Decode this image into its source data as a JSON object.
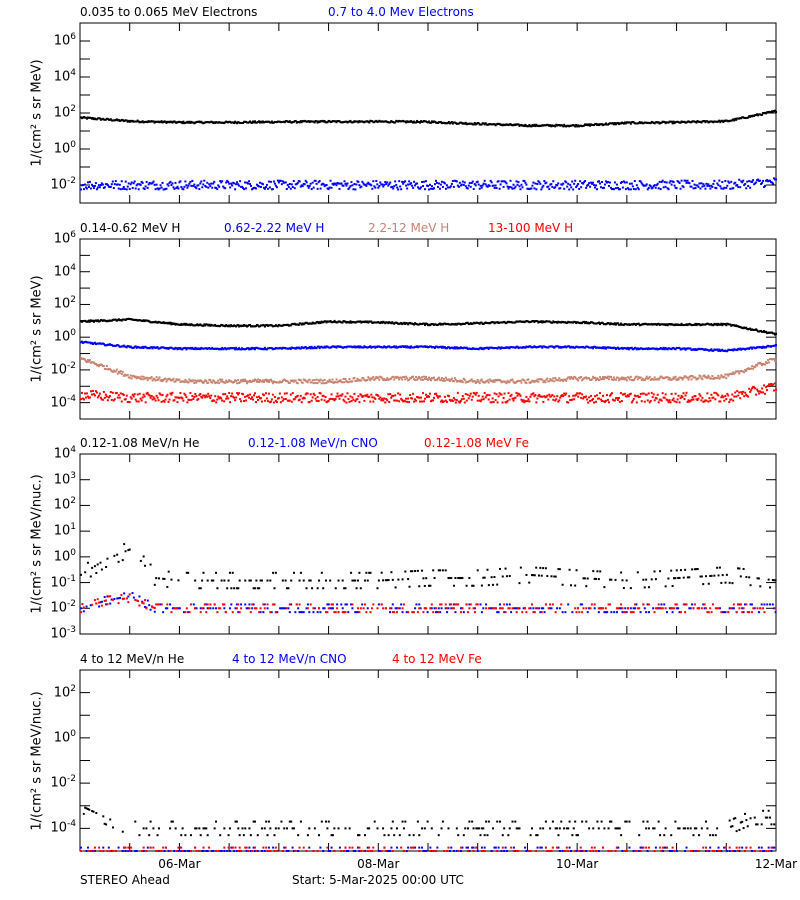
{
  "footer": {
    "spacecraft": "STEREO Ahead",
    "start": "Start:  5-Mar-2025 00:00 UTC"
  },
  "colors": {
    "black": "#000000",
    "blue": "#0000ff",
    "brown": "#c8826e",
    "red": "#ff0000"
  },
  "chart_data": [
    {
      "type": "scatter",
      "ylabel": "1/(cm² s sr MeV)",
      "ylog": true,
      "ylim": [
        0.001,
        10000000
      ],
      "ytick_exponents": [
        -2,
        0,
        2,
        4,
        6
      ],
      "x_times_days": [
        0,
        0.5,
        1,
        1.5,
        2,
        2.5,
        3,
        3.5,
        4,
        4.5,
        5,
        5.5,
        6,
        6.5,
        7
      ],
      "series": [
        {
          "name": "0.035 to 0.065 MeV Electrons",
          "color": "#000000",
          "values": [
            55,
            35,
            30,
            30,
            32,
            33,
            33,
            32,
            25,
            20,
            20,
            28,
            30,
            35,
            130
          ]
        },
        {
          "name": "0.7 to 4.0 Mev Electrons",
          "color": "#0000ff",
          "values": [
            0.01,
            0.01,
            0.01,
            0.01,
            0.01,
            0.01,
            0.01,
            0.01,
            0.01,
            0.01,
            0.01,
            0.01,
            0.01,
            0.01,
            0.015
          ]
        }
      ]
    },
    {
      "type": "scatter",
      "ylabel": "1/(cm² s sr MeV)",
      "ylog": true,
      "ylim": [
        1e-05,
        1000000
      ],
      "ytick_exponents": [
        -4,
        -2,
        0,
        2,
        4,
        6
      ],
      "x_times_days": [
        0,
        0.5,
        1,
        1.5,
        2,
        2.5,
        3,
        3.5,
        4,
        4.5,
        5,
        5.5,
        6,
        6.5,
        7
      ],
      "series": [
        {
          "name": "0.14-0.62 MeV H",
          "color": "#000000",
          "values": [
            9,
            12,
            6,
            5,
            5,
            9,
            8,
            6,
            7,
            9,
            8,
            6,
            6,
            6,
            1.5
          ]
        },
        {
          "name": "0.62-2.22 MeV H",
          "color": "#0000ff",
          "values": [
            0.5,
            0.25,
            0.2,
            0.2,
            0.2,
            0.25,
            0.25,
            0.25,
            0.2,
            0.25,
            0.25,
            0.2,
            0.2,
            0.15,
            0.3
          ]
        },
        {
          "name": "2.2-12 MeV H",
          "color": "#c8826e",
          "values": [
            0.05,
            0.004,
            0.002,
            0.002,
            0.002,
            0.002,
            0.003,
            0.003,
            0.002,
            0.002,
            0.003,
            0.003,
            0.003,
            0.004,
            0.05
          ]
        },
        {
          "name": "13-100 MeV H",
          "color": "#ff0000",
          "values": [
            0.0003,
            0.0002,
            0.0002,
            0.0002,
            0.0002,
            0.0002,
            0.0002,
            0.0002,
            0.0002,
            0.0002,
            0.0002,
            0.0002,
            0.0002,
            0.0002,
            0.001
          ]
        }
      ]
    },
    {
      "type": "scatter",
      "ylabel": "1/(cm² s sr MeV/nuc.)",
      "ylog": true,
      "ylim": [
        0.001,
        10000
      ],
      "ytick_exponents": [
        -3,
        -2,
        -1,
        0,
        1,
        2,
        3,
        4
      ],
      "x_times_days": [
        0,
        0.25,
        0.5,
        0.75,
        1,
        1.5,
        2,
        2.5,
        3,
        3.5,
        4,
        4.5,
        5,
        5.5,
        6,
        6.5,
        7
      ],
      "series": [
        {
          "name": "0.12-1.08 MeV/n He",
          "color": "#000000",
          "values": [
            0.2,
            0.8,
            2,
            0.15,
            0.12,
            0.12,
            0.12,
            0.12,
            0.12,
            0.15,
            0.15,
            0.2,
            0.15,
            0.12,
            0.15,
            0.2,
            0.12
          ]
        },
        {
          "name": "0.12-1.08 MeV/n CNO",
          "color": "#0000ff",
          "values": [
            0.01,
            0.02,
            0.03,
            0.01,
            0.01,
            0.01,
            0.01,
            0.01,
            0.01,
            0.01,
            0.01,
            0.01,
            0.01,
            0.01,
            0.01,
            0.01,
            0.01
          ]
        },
        {
          "name": "0.12-1.08 MeV Fe",
          "color": "#ff0000",
          "values": [
            0.01,
            0.02,
            0.025,
            0.01,
            0.01,
            0.01,
            0.01,
            0.01,
            0.01,
            0.01,
            0.01,
            0.01,
            0.01,
            0.01,
            0.01,
            0.01,
            0.01
          ]
        }
      ]
    },
    {
      "type": "scatter",
      "ylabel": "1/(cm² s sr MeV/nuc.)",
      "ylog": true,
      "ylim": [
        1e-05,
        1000
      ],
      "ytick_exponents": [
        -4,
        -2,
        0,
        2
      ],
      "x_times_days": [
        0,
        0.25,
        0.5,
        1,
        2,
        3,
        4,
        5,
        6,
        6.5,
        6.75,
        7
      ],
      "series": [
        {
          "name": "4 to 12 MeV/n He",
          "color": "#000000",
          "values": [
            0.001,
            0.0003,
            0.0001,
            0.0001,
            0.0001,
            0.0001,
            0.0001,
            0.0001,
            0.0001,
            0.0001,
            0.0003,
            0.0003
          ]
        },
        {
          "name": "4 to 12 MeV/n CNO",
          "color": "#0000ff",
          "values": [
            1e-05,
            1e-05,
            1e-05,
            1e-05,
            1e-05,
            1e-05,
            1e-05,
            1e-05,
            1e-05,
            1e-05,
            1e-05,
            1e-05
          ]
        },
        {
          "name": "4 to 12 MeV Fe",
          "color": "#ff0000",
          "values": [
            1e-05,
            1e-05,
            1e-05,
            1e-05,
            1e-05,
            1e-05,
            1e-05,
            1e-05,
            1e-05,
            1e-05,
            1e-05,
            1e-05
          ]
        }
      ]
    }
  ],
  "xaxis": {
    "range_days": [
      0,
      7
    ],
    "tick_labels": [
      {
        "label": "06-Mar",
        "day": 1
      },
      {
        "label": "08-Mar",
        "day": 3
      },
      {
        "label": "10-Mar",
        "day": 5
      },
      {
        "label": "12-Mar",
        "day": 7
      }
    ]
  }
}
